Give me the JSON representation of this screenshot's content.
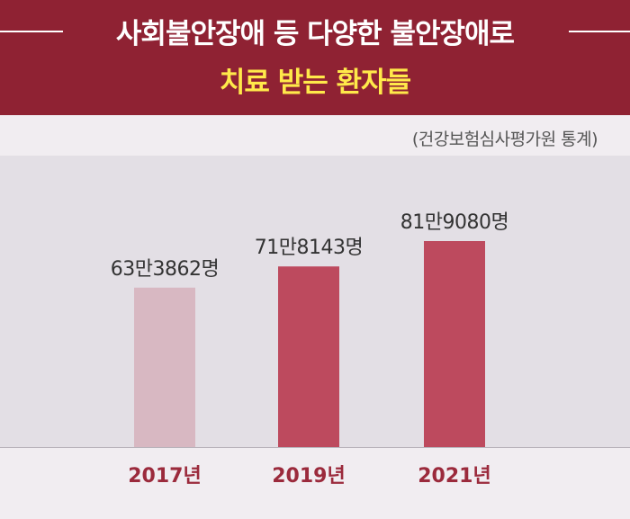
{
  "header": {
    "title_line1": "사회불안장애 등 다양한 불안장애로",
    "title_line2": "치료 받는 환자들"
  },
  "source": "(건강보험심사평가원 통계)",
  "colors": {
    "header_bg": "#8f2233",
    "highlight_text": "#ffe94a",
    "bar_2017": "#d8b8c2",
    "bar_main": "#bd4a5e",
    "xlabel": "#9b2a3c"
  },
  "chart_data": {
    "type": "bar",
    "categories": [
      "2017년",
      "2019년",
      "2021년"
    ],
    "values": [
      633862,
      718143,
      819080
    ],
    "value_labels": [
      "63만3862명",
      "71만8143명",
      "81만9080명"
    ],
    "ylim": [
      0,
      850000
    ],
    "grid": false,
    "legend": "none"
  }
}
